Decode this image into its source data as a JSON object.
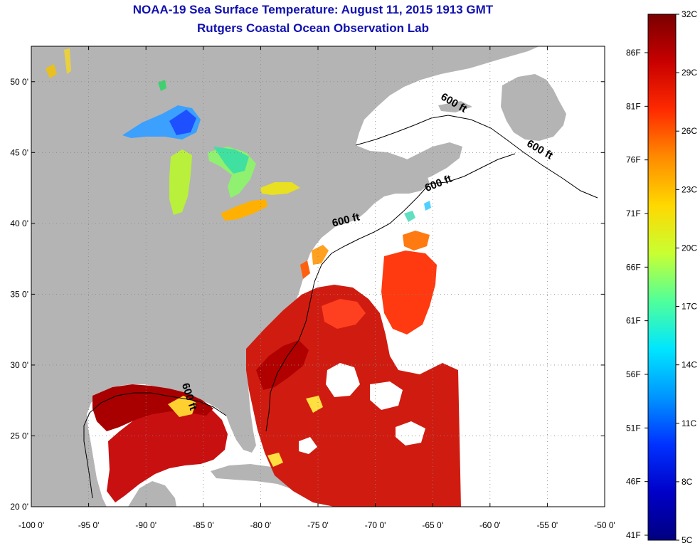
{
  "header": {
    "title_line1": "NOAA-19 Sea Surface Temperature:  August 11, 2015 1913 GMT",
    "title_line2": "Rutgers Coastal Ocean Observation Lab"
  },
  "map": {
    "lon_range": [
      -100,
      -50
    ],
    "lat_range": [
      20,
      52.5
    ],
    "lon_ticks": [
      {
        "value": -100,
        "label": "-100 0'"
      },
      {
        "value": -95,
        "label": "-95 0'"
      },
      {
        "value": -90,
        "label": "-90 0'"
      },
      {
        "value": -85,
        "label": "-85 0'"
      },
      {
        "value": -80,
        "label": "-80 0'"
      },
      {
        "value": -75,
        "label": "-75 0'"
      },
      {
        "value": -70,
        "label": "-70 0'"
      },
      {
        "value": -65,
        "label": "-65 0'"
      },
      {
        "value": -60,
        "label": "-60 0'"
      },
      {
        "value": -55,
        "label": "-55 0'"
      },
      {
        "value": -50,
        "label": "-50 0'"
      }
    ],
    "lat_ticks": [
      {
        "value": 20,
        "label": "20 0'"
      },
      {
        "value": 25,
        "label": "25 0'"
      },
      {
        "value": 30,
        "label": "30 0'"
      },
      {
        "value": 35,
        "label": "35 0'"
      },
      {
        "value": 40,
        "label": "40 0'"
      },
      {
        "value": 45,
        "label": "45 0'"
      },
      {
        "value": 50,
        "label": "50 0'"
      }
    ],
    "grid": "dotted",
    "land_color": "#b4b4b4",
    "ocean_color": "#ffffff",
    "isobath_labels": [
      {
        "text": "600 ft",
        "lon": -63.3,
        "lat": 48.3
      },
      {
        "text": "600 ft",
        "lon": -55.8,
        "lat": 45.0
      },
      {
        "text": "600 ft",
        "lon": -64.4,
        "lat": 42.6
      },
      {
        "text": "600 ft",
        "lon": -72.5,
        "lat": 40.0
      },
      {
        "text": "600 ft",
        "lon": -86.5,
        "lat": 27.7
      }
    ]
  },
  "colorbar": {
    "celsius_labels": [
      "32C",
      "29C",
      "26C",
      "23C",
      "20C",
      "17C",
      "14C",
      "11C",
      "8C",
      "5C"
    ],
    "fahrenheit_labels": [
      "86F",
      "81F",
      "76F",
      "71F",
      "66F",
      "61F",
      "56F",
      "51F",
      "46F",
      "41F"
    ],
    "colors": [
      "#7a0000",
      "#c80000",
      "#ff2a00",
      "#ff8c00",
      "#ffd800",
      "#c8ff32",
      "#50ff9a",
      "#00e6ff",
      "#0096ff",
      "#0032ff",
      "#0000c8",
      "#000080"
    ]
  }
}
